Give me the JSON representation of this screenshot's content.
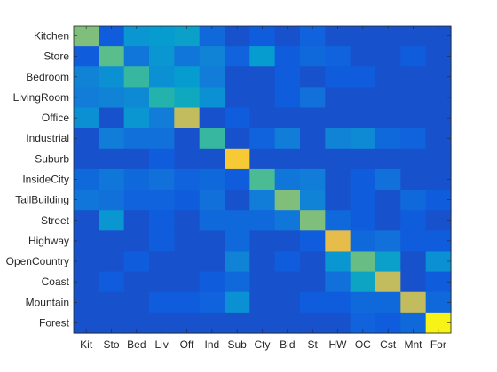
{
  "chart_data": {
    "type": "heatmap",
    "title": "",
    "xlabel": "",
    "ylabel": "",
    "colormap": "parula",
    "clim": [
      0,
      1
    ],
    "rows": [
      "Kitchen",
      "Store",
      "Bedroom",
      "LivingRoom",
      "Office",
      "Industrial",
      "Suburb",
      "InsideCity",
      "TallBuilding",
      "Street",
      "Highway",
      "OpenCountry",
      "Coast",
      "Mountain",
      "Forest"
    ],
    "columns": [
      "Kit",
      "Sto",
      "Bed",
      "Liv",
      "Off",
      "Ind",
      "Sub",
      "Cty",
      "Bld",
      "St",
      "HW",
      "OC",
      "Cst",
      "Mnt",
      "For"
    ],
    "values": [
      [
        0.55,
        0.1,
        0.28,
        0.3,
        0.32,
        0.14,
        0.08,
        0.1,
        0.08,
        0.12,
        0.08,
        0.08,
        0.08,
        0.08,
        0.08
      ],
      [
        0.1,
        0.5,
        0.18,
        0.28,
        0.18,
        0.22,
        0.12,
        0.3,
        0.1,
        0.14,
        0.12,
        0.08,
        0.08,
        0.1,
        0.08
      ],
      [
        0.22,
        0.26,
        0.45,
        0.26,
        0.3,
        0.2,
        0.08,
        0.08,
        0.1,
        0.08,
        0.1,
        0.1,
        0.08,
        0.08,
        0.08
      ],
      [
        0.2,
        0.22,
        0.24,
        0.42,
        0.36,
        0.26,
        0.08,
        0.08,
        0.1,
        0.16,
        0.08,
        0.08,
        0.08,
        0.08,
        0.08
      ],
      [
        0.26,
        0.08,
        0.28,
        0.2,
        0.65,
        0.08,
        0.1,
        0.08,
        0.08,
        0.08,
        0.08,
        0.08,
        0.08,
        0.08,
        0.08
      ],
      [
        0.08,
        0.2,
        0.16,
        0.16,
        0.08,
        0.45,
        0.08,
        0.12,
        0.2,
        0.08,
        0.22,
        0.24,
        0.14,
        0.12,
        0.08
      ],
      [
        0.08,
        0.08,
        0.08,
        0.1,
        0.08,
        0.08,
        0.78,
        0.08,
        0.08,
        0.08,
        0.08,
        0.08,
        0.08,
        0.08,
        0.08
      ],
      [
        0.14,
        0.18,
        0.14,
        0.16,
        0.12,
        0.14,
        0.1,
        0.48,
        0.18,
        0.2,
        0.08,
        0.1,
        0.16,
        0.08,
        0.08
      ],
      [
        0.18,
        0.16,
        0.12,
        0.12,
        0.1,
        0.16,
        0.08,
        0.2,
        0.55,
        0.22,
        0.08,
        0.1,
        0.08,
        0.14,
        0.1
      ],
      [
        0.08,
        0.28,
        0.08,
        0.1,
        0.08,
        0.14,
        0.14,
        0.14,
        0.18,
        0.55,
        0.14,
        0.1,
        0.08,
        0.1,
        0.08
      ],
      [
        0.08,
        0.08,
        0.08,
        0.1,
        0.08,
        0.08,
        0.14,
        0.08,
        0.08,
        0.1,
        0.72,
        0.14,
        0.16,
        0.1,
        0.1
      ],
      [
        0.08,
        0.08,
        0.1,
        0.08,
        0.08,
        0.08,
        0.22,
        0.08,
        0.1,
        0.08,
        0.28,
        0.52,
        0.32,
        0.08,
        0.26
      ],
      [
        0.08,
        0.1,
        0.08,
        0.08,
        0.08,
        0.1,
        0.14,
        0.08,
        0.08,
        0.08,
        0.16,
        0.34,
        0.65,
        0.08,
        0.1
      ],
      [
        0.08,
        0.08,
        0.08,
        0.1,
        0.1,
        0.12,
        0.26,
        0.08,
        0.08,
        0.1,
        0.1,
        0.14,
        0.14,
        0.65,
        0.14
      ],
      [
        0.08,
        0.08,
        0.08,
        0.08,
        0.08,
        0.08,
        0.08,
        0.08,
        0.08,
        0.08,
        0.08,
        0.12,
        0.1,
        0.14,
        0.95
      ]
    ]
  }
}
